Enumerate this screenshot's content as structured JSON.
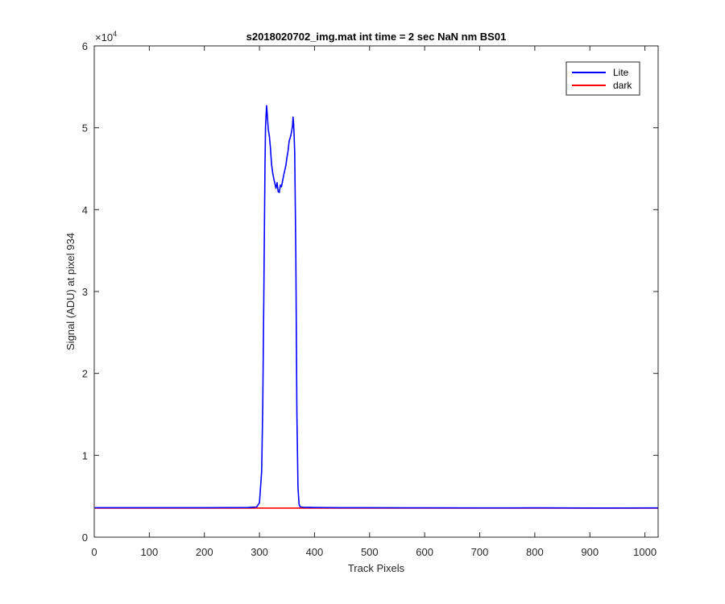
{
  "chart_data": {
    "type": "line",
    "title": "s2018020702_img.mat int time = 2 sec  NaN nm BS01",
    "xlabel": "Track Pixels",
    "ylabel": "Signal (ADU) at pixel 934",
    "exponent_label": "×10",
    "exponent_power": "4",
    "xlim": [
      0,
      1024
    ],
    "ylim": [
      0,
      60000
    ],
    "xticks": [
      0,
      100,
      200,
      300,
      400,
      500,
      600,
      700,
      800,
      900,
      1000
    ],
    "yticks": [
      0,
      10000,
      20000,
      30000,
      40000,
      50000,
      60000
    ],
    "xtick_labels": [
      "0",
      "100",
      "200",
      "300",
      "400",
      "500",
      "600",
      "700",
      "800",
      "900",
      "1000"
    ],
    "ytick_labels": [
      "0",
      "1",
      "2",
      "3",
      "4",
      "5",
      "6"
    ],
    "grid": false,
    "legend_position": "top-right",
    "series": [
      {
        "name": "Lite",
        "color": "#0000ff",
        "x": [
          1,
          100,
          200,
          280,
          295,
          300,
          304,
          306,
          308,
          310,
          311,
          312,
          313,
          314,
          316,
          318,
          320,
          322,
          324,
          326,
          328,
          330,
          332,
          334,
          336,
          338,
          340,
          342,
          344,
          346,
          348,
          350,
          352,
          354,
          356,
          358,
          360,
          361,
          362,
          363,
          364,
          366,
          368,
          370,
          372,
          374,
          380,
          400,
          450,
          500,
          600,
          700,
          800,
          900,
          1024
        ],
        "y": [
          3600,
          3600,
          3600,
          3620,
          3680,
          4200,
          8000,
          16000,
          30000,
          45000,
          50000,
          51500,
          52700,
          51800,
          49800,
          49000,
          47500,
          45500,
          44500,
          43800,
          43200,
          42600,
          43300,
          42200,
          42100,
          43000,
          42800,
          43500,
          44200,
          44800,
          45400,
          46400,
          47200,
          48400,
          48800,
          49400,
          50200,
          51300,
          50500,
          49000,
          47000,
          35000,
          15000,
          6000,
          4000,
          3700,
          3650,
          3620,
          3600,
          3600,
          3580,
          3570,
          3580,
          3560,
          3570
        ]
      },
      {
        "name": "dark",
        "color": "#ff0000",
        "x": [
          1,
          1024
        ],
        "y": [
          3550,
          3550
        ]
      }
    ]
  }
}
